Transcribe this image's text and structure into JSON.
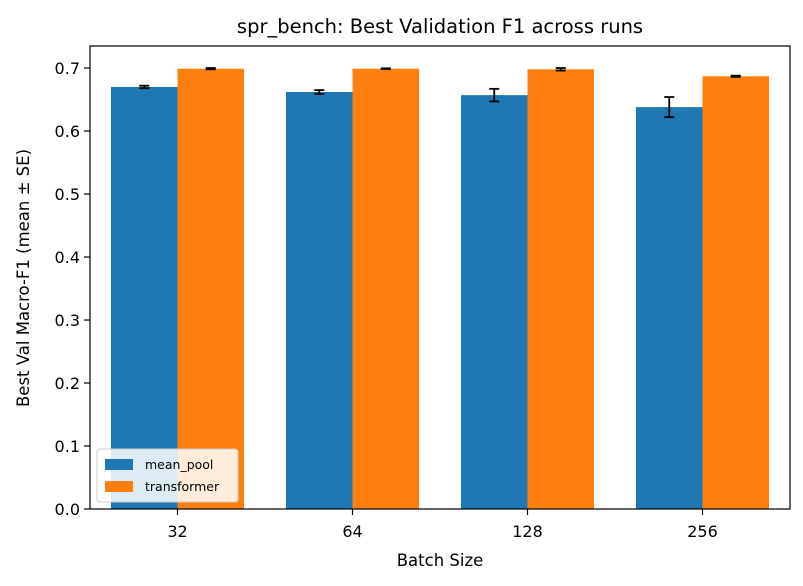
{
  "chart_data": {
    "type": "bar",
    "title": "spr_bench: Best Validation F1 across runs",
    "xlabel": "Batch Size",
    "ylabel": "Best Val Macro-F1 (mean ± SE)",
    "categories": [
      "32",
      "64",
      "128",
      "256"
    ],
    "ylim": [
      0,
      0.735
    ],
    "yticks": [
      0.0,
      0.1,
      0.2,
      0.3,
      0.4,
      0.5,
      0.6,
      0.7
    ],
    "ytick_labels": [
      "0.0",
      "0.1",
      "0.2",
      "0.3",
      "0.4",
      "0.5",
      "0.6",
      "0.7"
    ],
    "legend_position": "lower-left",
    "series": [
      {
        "name": "mean_pool",
        "color": "#1f77b4",
        "values": [
          0.67,
          0.662,
          0.657,
          0.638
        ],
        "errors": [
          0.002,
          0.003,
          0.01,
          0.016
        ]
      },
      {
        "name": "transformer",
        "color": "#ff7f0e",
        "values": [
          0.699,
          0.699,
          0.698,
          0.687
        ],
        "errors": [
          0.001,
          0.0005,
          0.002,
          0.001
        ]
      }
    ]
  }
}
